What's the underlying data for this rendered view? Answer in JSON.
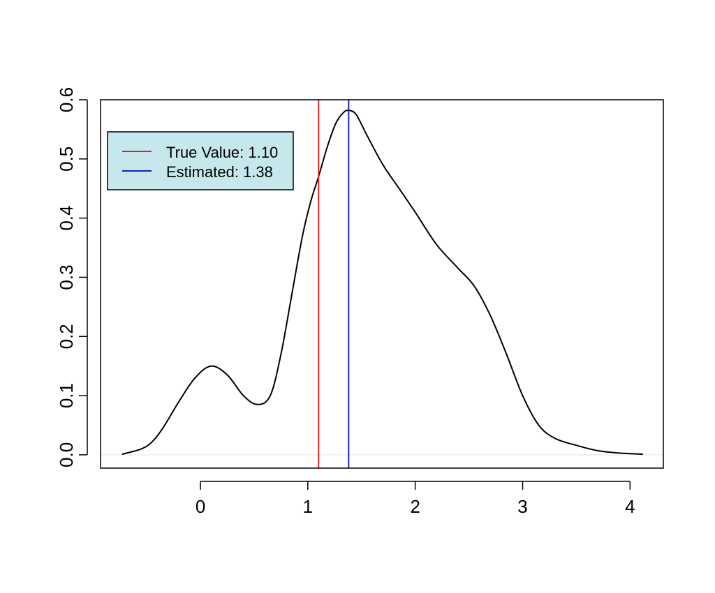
{
  "chart_data": {
    "type": "line",
    "title": "",
    "xlabel": "",
    "ylabel": "",
    "xlim": [
      -0.93,
      4.31
    ],
    "ylim": [
      -0.0225,
      0.6
    ],
    "x_ticks": [
      0,
      1,
      2,
      3,
      4
    ],
    "x_tick_labels": [
      "0",
      "1",
      "2",
      "3",
      "4"
    ],
    "y_ticks": [
      0.0,
      0.1,
      0.2,
      0.3,
      0.4,
      0.5,
      0.6
    ],
    "y_tick_labels": [
      "0.0",
      "0.1",
      "0.2",
      "0.3",
      "0.4",
      "0.5",
      "0.6"
    ],
    "baseline": 0,
    "series": [
      {
        "name": "density",
        "color": "#000000",
        "x": [
          -0.73,
          -0.55,
          -0.45,
          -0.35,
          -0.2,
          -0.05,
          0.1,
          0.25,
          0.4,
          0.53,
          0.65,
          0.75,
          0.85,
          0.95,
          1.03,
          1.1,
          1.18,
          1.26,
          1.33,
          1.38,
          1.45,
          1.55,
          1.7,
          1.85,
          2.0,
          2.2,
          2.4,
          2.55,
          2.7,
          2.85,
          3.0,
          3.15,
          3.3,
          3.5,
          3.7,
          3.9,
          4.12
        ],
        "y": [
          0.001,
          0.01,
          0.022,
          0.045,
          0.09,
          0.13,
          0.15,
          0.135,
          0.1,
          0.085,
          0.1,
          0.17,
          0.27,
          0.37,
          0.43,
          0.47,
          0.52,
          0.56,
          0.578,
          0.582,
          0.575,
          0.54,
          0.49,
          0.45,
          0.41,
          0.355,
          0.315,
          0.285,
          0.235,
          0.17,
          0.1,
          0.05,
          0.028,
          0.016,
          0.007,
          0.003,
          0.001
        ]
      }
    ],
    "vlines": [
      {
        "name": "True Value",
        "x": 1.1,
        "color": "#d62728"
      },
      {
        "name": "Estimated",
        "x": 1.38,
        "color": "#1f1fb4"
      }
    ],
    "legend": {
      "position": "top-left",
      "background": "#c6e8ec",
      "entries": [
        {
          "label": "True Value: 1.10",
          "color": "#d62728"
        },
        {
          "label": "Estimated: 1.38",
          "color": "#1f1fb4"
        }
      ]
    }
  }
}
